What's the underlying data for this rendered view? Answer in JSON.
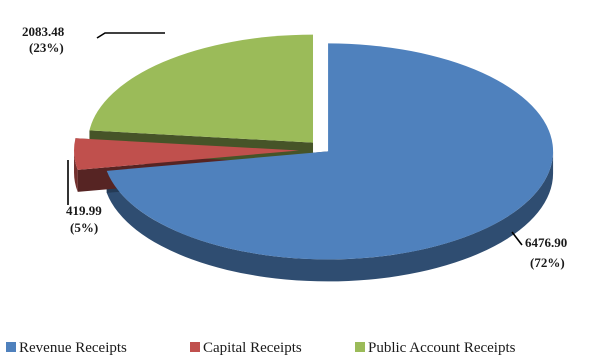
{
  "chart_data": {
    "type": "pie",
    "title": "",
    "slices": [
      {
        "name": "Revenue Receipts",
        "value": 6476.9,
        "percent_label": "(72%)",
        "value_label": "6476.90",
        "color": "#4f81bd"
      },
      {
        "name": "Capital Receipts",
        "value": 419.99,
        "percent_label": "(5%)",
        "value_label": "419.99",
        "color": "#c0504d"
      },
      {
        "name": "Public Account Receipts",
        "value": 2083.48,
        "percent_label": "(23%)",
        "value_label": "2083.48",
        "color": "#9bbb59"
      }
    ],
    "legend_position": "bottom"
  }
}
